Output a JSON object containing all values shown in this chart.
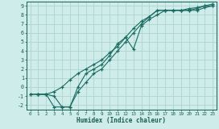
{
  "xlabel": "Humidex (Indice chaleur)",
  "ylabel": "",
  "background_color": "#ceecea",
  "grid_color": "#b0d4d0",
  "line_color": "#1a6b62",
  "xlim": [
    -0.5,
    23.5
  ],
  "ylim": [
    -2.5,
    9.5
  ],
  "xticks": [
    0,
    1,
    2,
    3,
    4,
    5,
    6,
    7,
    8,
    9,
    10,
    11,
    12,
    13,
    14,
    15,
    16,
    17,
    18,
    19,
    20,
    21,
    22,
    23
  ],
  "yticks": [
    -2,
    -1,
    0,
    1,
    2,
    3,
    4,
    5,
    6,
    7,
    8,
    9
  ],
  "line1_x": [
    0,
    1,
    2,
    3,
    4,
    5,
    6,
    7,
    8,
    9,
    10,
    11,
    12,
    13,
    14,
    15,
    16,
    17,
    18,
    19,
    20,
    21,
    22,
    23
  ],
  "line1_y": [
    -0.8,
    -0.8,
    -0.8,
    -1.0,
    -2.2,
    -2.2,
    -0.5,
    0.5,
    1.5,
    2.0,
    3.0,
    4.0,
    5.0,
    6.0,
    7.0,
    7.8,
    8.5,
    8.5,
    8.5,
    8.5,
    8.5,
    8.7,
    9.0,
    9.0
  ],
  "line2_x": [
    1,
    2,
    3,
    4,
    5,
    6,
    7,
    8,
    9,
    10,
    11,
    12,
    13,
    14,
    15,
    16,
    17,
    18,
    19,
    20,
    21,
    22,
    23
  ],
  "line2_y": [
    -0.8,
    -0.8,
    -2.2,
    -2.2,
    -2.2,
    0.0,
    1.5,
    2.0,
    2.5,
    3.5,
    4.8,
    5.5,
    4.2,
    6.8,
    7.5,
    8.0,
    8.5,
    8.5,
    8.5,
    8.5,
    8.5,
    8.8,
    9.0
  ],
  "line3_x": [
    0,
    1,
    2,
    3,
    4,
    5,
    6,
    7,
    8,
    9,
    10,
    11,
    12,
    13,
    14,
    15,
    16,
    17,
    18,
    19,
    20,
    21,
    22,
    23
  ],
  "line3_y": [
    -0.8,
    -0.8,
    -0.8,
    -0.5,
    0.0,
    0.8,
    1.5,
    2.0,
    2.5,
    3.0,
    3.8,
    4.5,
    5.5,
    6.5,
    7.3,
    7.8,
    8.5,
    8.5,
    8.5,
    8.5,
    8.7,
    8.8,
    9.0,
    9.2
  ]
}
